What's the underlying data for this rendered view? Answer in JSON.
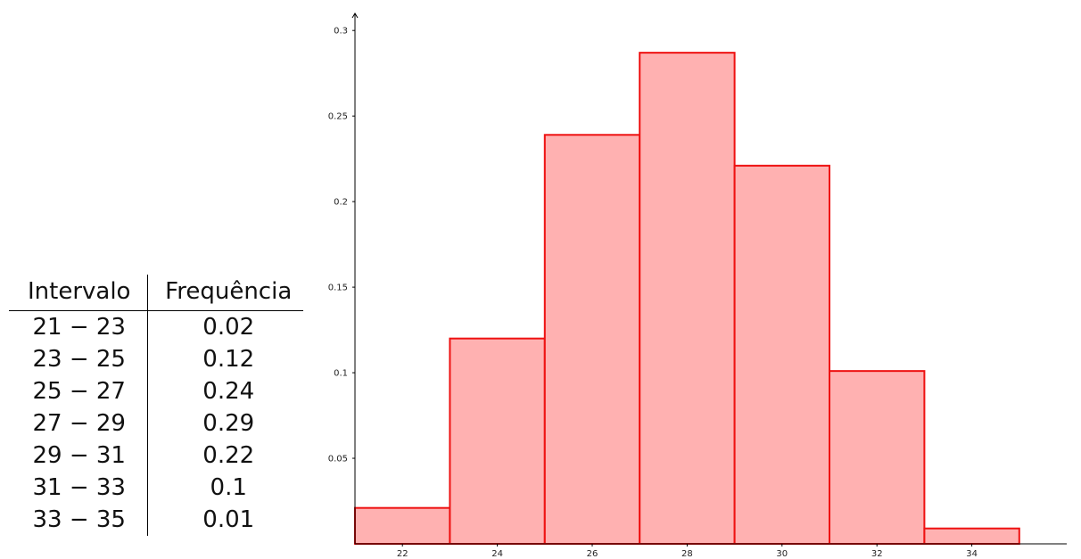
{
  "table": {
    "headers": [
      "Intervalo",
      "Frequência"
    ],
    "rows": [
      [
        "21 − 23",
        "0.02"
      ],
      [
        "23 − 25",
        "0.12"
      ],
      [
        "25 − 27",
        "0.24"
      ],
      [
        "27 − 29",
        "0.29"
      ],
      [
        "29 − 31",
        "0.22"
      ],
      [
        "31 − 33",
        "0.1"
      ],
      [
        "33 − 35",
        "0.01"
      ]
    ]
  },
  "chart_data": {
    "type": "bar",
    "bins": [
      [
        21,
        23
      ],
      [
        23,
        25
      ],
      [
        25,
        27
      ],
      [
        27,
        29
      ],
      [
        29,
        31
      ],
      [
        31,
        33
      ],
      [
        33,
        35
      ]
    ],
    "values": [
      0.021,
      0.12,
      0.239,
      0.287,
      0.221,
      0.101,
      0.009
    ],
    "xticks": [
      22,
      24,
      26,
      28,
      30,
      32,
      34
    ],
    "yticks": [
      0.05,
      0.1,
      0.15,
      0.2,
      0.25,
      0.3
    ],
    "xlim": [
      21,
      36
    ],
    "ylim": [
      0,
      0.31
    ],
    "title": "",
    "xlabel": "",
    "ylabel": "",
    "grid": false,
    "colors": {
      "fill": "#ffb1b1",
      "stroke": "#ee1111",
      "axis": "#000000"
    }
  }
}
